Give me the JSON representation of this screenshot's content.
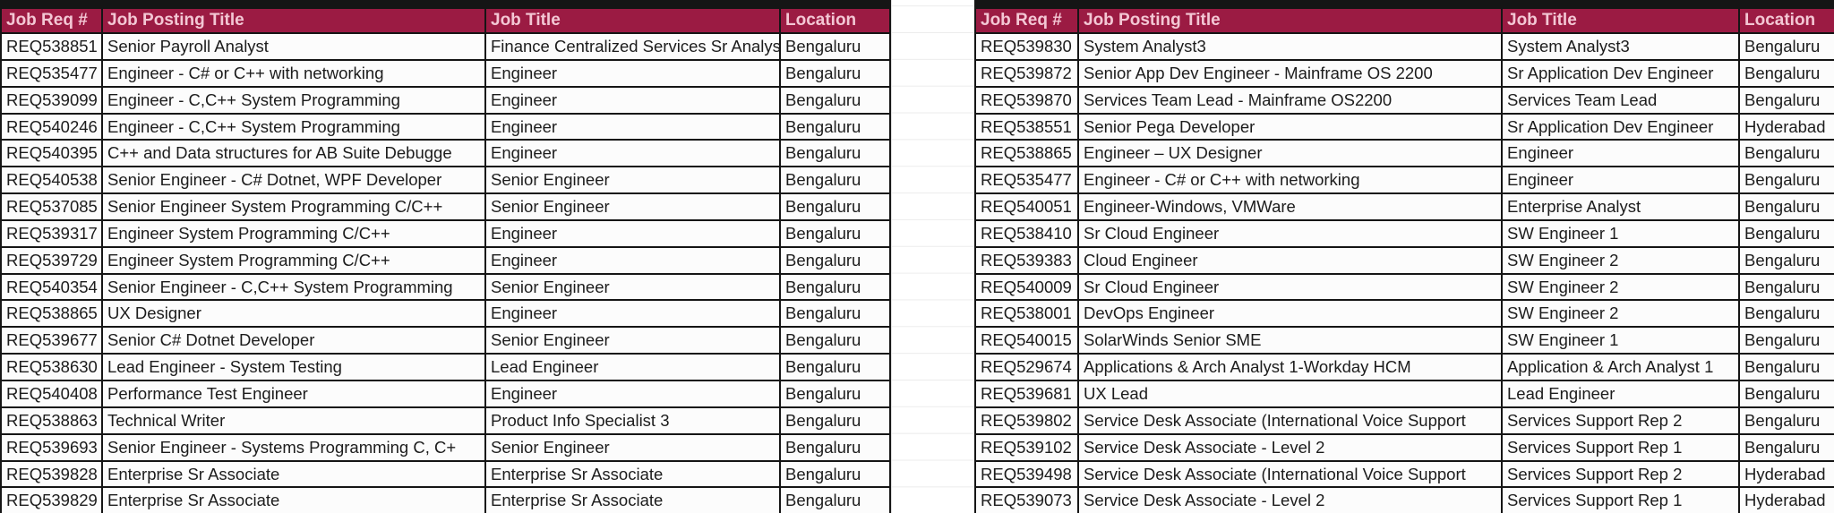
{
  "app": {
    "description": "Spreadsheet view with two side-by-side job requisition tables"
  },
  "colors": {
    "header_bg": "#9b1b43",
    "header_text": "#f3c7d4",
    "grid_dark": "#151515",
    "row_bg": "#fcfcfc",
    "cell_text": "#1c1c1c"
  },
  "left_table": {
    "headers": [
      "Job Req #",
      "Job Posting Title",
      "Job Title",
      "Location"
    ],
    "rows": [
      {
        "req": "REQ538851",
        "posting_title": "Senior Payroll Analyst",
        "job_title": "Finance Centralized Services Sr Analys",
        "location": "Bengaluru"
      },
      {
        "req": "REQ535477",
        "posting_title": "Engineer - C# or C++ with networking",
        "job_title": "Engineer",
        "location": "Bengaluru"
      },
      {
        "req": "REQ539099",
        "posting_title": "Engineer - C,C++ System Programming",
        "job_title": "Engineer",
        "location": "Bengaluru"
      },
      {
        "req": "REQ540246",
        "posting_title": "Engineer - C,C++ System Programming",
        "job_title": "Engineer",
        "location": "Bengaluru"
      },
      {
        "req": "REQ540395",
        "posting_title": "C++ and Data structures for AB Suite Debugge",
        "job_title": "Engineer",
        "location": "Bengaluru"
      },
      {
        "req": "REQ540538",
        "posting_title": "Senior Engineer - C# Dotnet, WPF Developer",
        "job_title": "Senior Engineer",
        "location": "Bengaluru"
      },
      {
        "req": "REQ537085",
        "posting_title": "Senior Engineer System Programming C/C++",
        "job_title": "Senior Engineer",
        "location": "Bengaluru"
      },
      {
        "req": "REQ539317",
        "posting_title": "Engineer System Programming C/C++",
        "job_title": "Engineer",
        "location": "Bengaluru"
      },
      {
        "req": "REQ539729",
        "posting_title": "Engineer System Programming C/C++",
        "job_title": "Engineer",
        "location": "Bengaluru"
      },
      {
        "req": "REQ540354",
        "posting_title": "Senior Engineer - C,C++ System Programming",
        "job_title": "Senior Engineer",
        "location": "Bengaluru"
      },
      {
        "req": "REQ538865",
        "posting_title": "UX Designer",
        "job_title": "Engineer",
        "location": "Bengaluru"
      },
      {
        "req": "REQ539677",
        "posting_title": "Senior C# Dotnet Developer",
        "job_title": "Senior Engineer",
        "location": "Bengaluru"
      },
      {
        "req": "REQ538630",
        "posting_title": "Lead Engineer - System Testing",
        "job_title": "Lead Engineer",
        "location": "Bengaluru"
      },
      {
        "req": "REQ540408",
        "posting_title": "Performance Test Engineer",
        "job_title": "Engineer",
        "location": "Bengaluru"
      },
      {
        "req": "REQ538863",
        "posting_title": "Technical Writer",
        "job_title": "Product Info Specialist 3",
        "location": "Bengaluru"
      },
      {
        "req": "REQ539693",
        "posting_title": "Senior Engineer - Systems Programming C, C+",
        "job_title": "Senior Engineer",
        "location": "Bengaluru"
      },
      {
        "req": "REQ539828",
        "posting_title": "Enterprise Sr Associate",
        "job_title": "Enterprise Sr Associate",
        "location": "Bengaluru"
      },
      {
        "req": "REQ539829",
        "posting_title": "Enterprise Sr Associate",
        "job_title": "Enterprise Sr Associate",
        "location": "Bengaluru"
      }
    ]
  },
  "right_table": {
    "headers": [
      "Job Req #",
      "Job Posting Title",
      "Job Title",
      "Location"
    ],
    "rows": [
      {
        "req": "REQ539830",
        "posting_title": "System Analyst3",
        "job_title": "System Analyst3",
        "location": "Bengaluru"
      },
      {
        "req": "REQ539872",
        "posting_title": "Senior App Dev Engineer - Mainframe OS 2200",
        "job_title": "Sr Application Dev Engineer",
        "location": "Bengaluru"
      },
      {
        "req": "REQ539870",
        "posting_title": "Services Team Lead - Mainframe OS2200",
        "job_title": "Services Team Lead",
        "location": "Bengaluru"
      },
      {
        "req": "REQ538551",
        "posting_title": "Senior Pega Developer",
        "job_title": "Sr Application Dev Engineer",
        "location": "Hyderabad"
      },
      {
        "req": "REQ538865",
        "posting_title": "Engineer – UX Designer",
        "job_title": "Engineer",
        "location": "Bengaluru"
      },
      {
        "req": "REQ535477",
        "posting_title": "Engineer - C# or C++ with networking",
        "job_title": "Engineer",
        "location": "Bengaluru"
      },
      {
        "req": "REQ540051",
        "posting_title": "Engineer-Windows, VMWare",
        "job_title": "Enterprise Analyst",
        "location": "Bengaluru"
      },
      {
        "req": "REQ538410",
        "posting_title": "Sr Cloud Engineer",
        "job_title": "SW Engineer 1",
        "location": "Bengaluru"
      },
      {
        "req": "REQ539383",
        "posting_title": "Cloud Engineer",
        "job_title": "SW Engineer 2",
        "location": "Bengaluru"
      },
      {
        "req": "REQ540009",
        "posting_title": "Sr Cloud Engineer",
        "job_title": "SW Engineer 2",
        "location": "Bengaluru"
      },
      {
        "req": "REQ538001",
        "posting_title": "DevOps Engineer",
        "job_title": "SW Engineer 2",
        "location": "Bengaluru"
      },
      {
        "req": "REQ540015",
        "posting_title": "SolarWinds Senior SME",
        "job_title": "SW Engineer 1",
        "location": "Bengaluru"
      },
      {
        "req": "REQ529674",
        "posting_title": "Applications & Arch Analyst 1-Workday HCM",
        "job_title": "Application & Arch Analyst 1",
        "location": "Bengaluru"
      },
      {
        "req": "REQ539681",
        "posting_title": "UX Lead",
        "job_title": "Lead Engineer",
        "location": "Bengaluru"
      },
      {
        "req": "REQ539802",
        "posting_title": "Service Desk Associate (International Voice Support",
        "job_title": "Services Support Rep 2",
        "location": "Bengaluru"
      },
      {
        "req": "REQ539102",
        "posting_title": "Service Desk Associate - Level 2",
        "job_title": "Services Support Rep 1",
        "location": "Bengaluru"
      },
      {
        "req": "REQ539498",
        "posting_title": "Service Desk Associate (International Voice Support",
        "job_title": "Services Support Rep 2",
        "location": "Hyderabad"
      },
      {
        "req": "REQ539073",
        "posting_title": "Service Desk Associate - Level 2",
        "job_title": "Services Support Rep 1",
        "location": "Hyderabad"
      }
    ]
  }
}
